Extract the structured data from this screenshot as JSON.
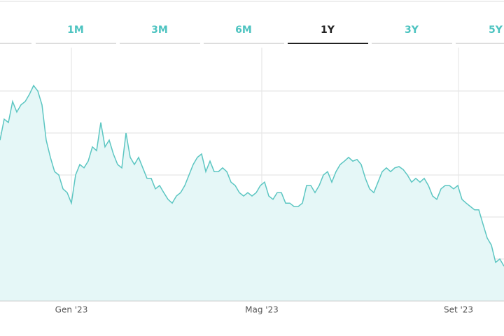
{
  "tabs": [
    "1M",
    "3M",
    "6M",
    "1Y",
    "3Y",
    "5Y"
  ],
  "active_tab": 3,
  "chart_data": {
    "type": "area",
    "color": "#5cc6c2",
    "fill": "#e5f7f7",
    "grid": true,
    "values": [
      3.83,
      4.33,
      4.25,
      4.75,
      4.5,
      4.67,
      4.75,
      4.92,
      5.13,
      5,
      4.67,
      3.83,
      3.42,
      3.08,
      3,
      2.67,
      2.58,
      2.33,
      3,
      3.25,
      3.17,
      3.33,
      3.67,
      3.58,
      4.25,
      3.67,
      3.83,
      3.5,
      3.25,
      3.17,
      4,
      3.42,
      3.25,
      3.42,
      3.17,
      2.92,
      2.92,
      2.67,
      2.75,
      2.58,
      2.42,
      2.33,
      2.5,
      2.58,
      2.75,
      3,
      3.25,
      3.42,
      3.5,
      3.08,
      3.33,
      3.08,
      3.08,
      3.17,
      3.08,
      2.83,
      2.75,
      2.58,
      2.5,
      2.58,
      2.5,
      2.58,
      2.75,
      2.83,
      2.5,
      2.42,
      2.58,
      2.58,
      2.33,
      2.33,
      2.25,
      2.25,
      2.33,
      2.75,
      2.75,
      2.58,
      2.75,
      3,
      3.08,
      2.83,
      3.08,
      3.25,
      3.33,
      3.42,
      3.33,
      3.37,
      3.25,
      2.92,
      2.67,
      2.58,
      2.83,
      3.08,
      3.17,
      3.08,
      3.17,
      3.2,
      3.13,
      3,
      2.83,
      2.92,
      2.83,
      2.92,
      2.75,
      2.5,
      2.42,
      2.67,
      2.75,
      2.75,
      2.67,
      2.75,
      2.42,
      2.33,
      2.25,
      2.17,
      2.17,
      1.83,
      1.5,
      1.33,
      0.92,
      1,
      0.83
    ],
    "xlim": [
      0,
      120
    ],
    "xticks": [
      {
        "value": 17,
        "label": "Gen '23"
      },
      {
        "value": 62.33,
        "label": "Mag '23"
      },
      {
        "value": 109.17,
        "label": "Set '23"
      }
    ],
    "ylim": [
      0,
      6
    ],
    "yticks": [
      1,
      2,
      3,
      4,
      5
    ]
  }
}
